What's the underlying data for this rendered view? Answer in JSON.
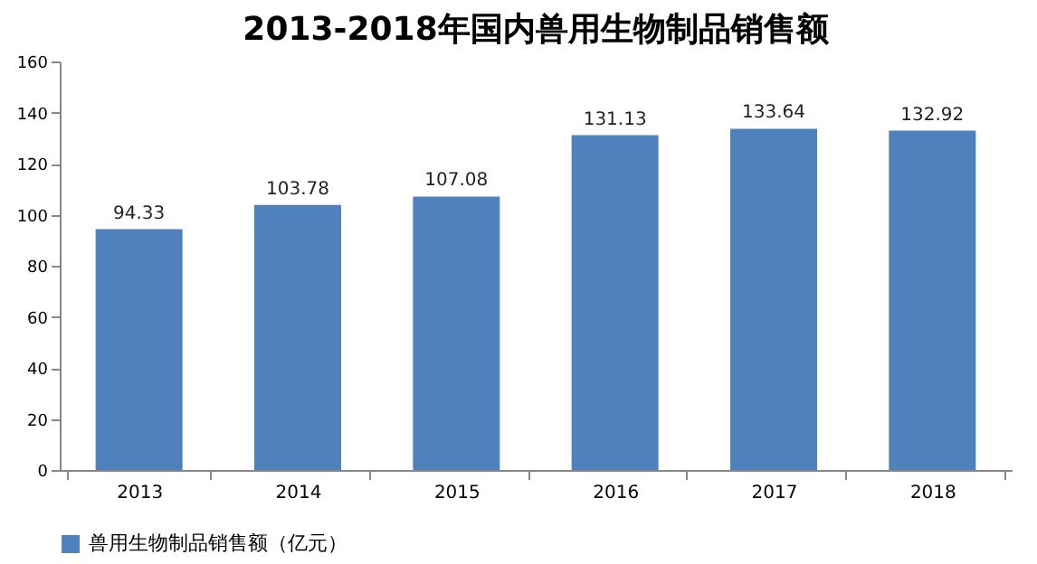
{
  "chart_data": {
    "type": "bar",
    "title": "2013-2018年国内兽用生物制品销售额",
    "categories": [
      "2013",
      "2014",
      "2015",
      "2016",
      "2017",
      "2018"
    ],
    "series": [
      {
        "name": "兽用生物制品销售额（亿元）",
        "color": "#4f81bd",
        "values": [
          94.33,
          103.78,
          107.08,
          131.13,
          133.64,
          132.92
        ]
      }
    ],
    "ylim": [
      0,
      160
    ],
    "yticks": [
      0,
      20,
      40,
      60,
      80,
      100,
      120,
      140,
      160
    ],
    "data_labels": true,
    "legend": "bottom",
    "grid": false
  }
}
